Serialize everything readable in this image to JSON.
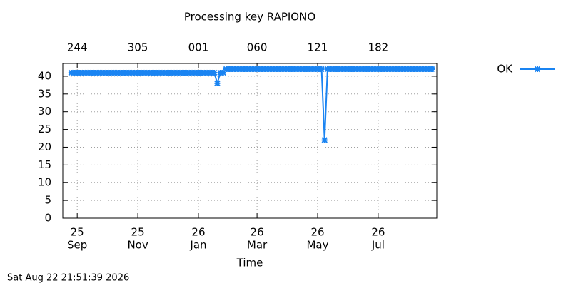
{
  "chart_data": {
    "type": "line",
    "title": "Processing key RAPIONO",
    "x_label": "Time",
    "timestamp": "Sat Aug 22 21:51:39 2026",
    "x": [
      238,
      241,
      244,
      247,
      250,
      253,
      256,
      259,
      262,
      265,
      268,
      271,
      274,
      277,
      280,
      283,
      286,
      289,
      292,
      295,
      298,
      301,
      304,
      307,
      310,
      313,
      316,
      319,
      322,
      325,
      328,
      331,
      334,
      337,
      340,
      343,
      346,
      349,
      352,
      355,
      358,
      361,
      364,
      367,
      370,
      373,
      376,
      379,
      382,
      385,
      388,
      391,
      394,
      397,
      400,
      403,
      406,
      409,
      412,
      415,
      418,
      421,
      424,
      427,
      430,
      433,
      436,
      439,
      442,
      445,
      448,
      451,
      454,
      457,
      460,
      463,
      466,
      469,
      472,
      475,
      478,
      481,
      484,
      487,
      490,
      493,
      496,
      499,
      502,
      505,
      508,
      511,
      514,
      517,
      520,
      523,
      526,
      529,
      532,
      535,
      538,
      541,
      544,
      547,
      550,
      553,
      556,
      559,
      562,
      565,
      568,
      571,
      574,
      577,
      580,
      583,
      586,
      589,
      592,
      595,
      598,
      601
    ],
    "series": [
      {
        "name": "OK",
        "color": "#1a84f2",
        "values": [
          41,
          41,
          41,
          41,
          41,
          41,
          41,
          41,
          41,
          41,
          41,
          41,
          41,
          41,
          41,
          41,
          41,
          41,
          41,
          41,
          41,
          41,
          41,
          41,
          41,
          41,
          41,
          41,
          41,
          41,
          41,
          41,
          41,
          41,
          41,
          41,
          41,
          41,
          41,
          41,
          41,
          41,
          41,
          41,
          41,
          41,
          41,
          41,
          41,
          38,
          41,
          41,
          42,
          42,
          42,
          42,
          42,
          42,
          42,
          42,
          42,
          42,
          42,
          42,
          42,
          42,
          42,
          42,
          42,
          42,
          42,
          42,
          42,
          42,
          42,
          42,
          42,
          42,
          42,
          42,
          42,
          42,
          42,
          42,
          42,
          22,
          42,
          42,
          42,
          42,
          42,
          42,
          42,
          42,
          42,
          42,
          42,
          42,
          42,
          42,
          42,
          42,
          42,
          42,
          42,
          42,
          42,
          42,
          42,
          42,
          42,
          42,
          42,
          42,
          42,
          42,
          42,
          42,
          42,
          42,
          42,
          42
        ]
      }
    ],
    "xlim": [
      229.5,
      606
    ],
    "xticks": [
      {
        "value": 244,
        "label": [
          "25",
          "Sep"
        ]
      },
      {
        "value": 305,
        "label": [
          "25",
          "Nov"
        ]
      },
      {
        "value": 366,
        "label": [
          "26",
          "Jan"
        ]
      },
      {
        "value": 425,
        "label": [
          "26",
          "Mar"
        ]
      },
      {
        "value": 486,
        "label": [
          "26",
          "May"
        ]
      },
      {
        "value": 547,
        "label": [
          "26",
          "Jul"
        ]
      }
    ],
    "x2ticks": [
      244,
      305,
      {
        "value": 366,
        "label": "001"
      },
      {
        "value": 425,
        "label": "060"
      },
      {
        "value": 486,
        "label": "121"
      },
      {
        "value": 547,
        "label": "182"
      }
    ],
    "ylim": [
      0,
      43.6
    ],
    "yticks": [
      0,
      5,
      10,
      15,
      20,
      25,
      30,
      35,
      40
    ],
    "grid": true,
    "legend": "right"
  }
}
